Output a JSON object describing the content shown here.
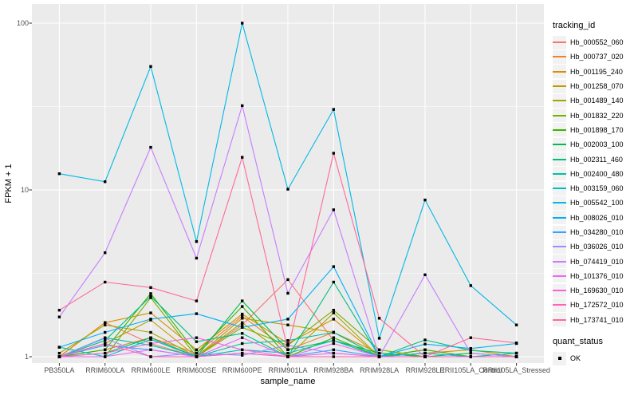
{
  "figure": {
    "panel_background": "#ebebeb",
    "grid_color": "#ffffff",
    "tick_color": "#333333",
    "tick_label_color": "#4d4d4d",
    "point_color": "#000000"
  },
  "axes": {
    "x_title": "sample_name",
    "y_title": "FPKM + 1"
  },
  "legend": {
    "color_title": "tracking_id",
    "shape_title": "quant_status",
    "shape_entries": [
      {
        "label": "OK",
        "marker": "filled-square"
      }
    ]
  },
  "chart_data": {
    "type": "line",
    "title": "",
    "xlabel": "sample_name",
    "ylabel": "FPKM + 1",
    "y_scale": "log10",
    "ylim": [
      0.92,
      130
    ],
    "y_ticks": [
      1,
      10,
      100
    ],
    "y_minor_ticks": [
      3.162,
      31.623
    ],
    "grid": "on",
    "legend_position": "right",
    "point_marker": "black-square",
    "categories": [
      "PB350LA",
      "RRIM600LA",
      "RRIM600LE",
      "RRIM600SE",
      "RRIM600PE",
      "RRIM901LA",
      "RRIM928BA",
      "RRIM928LA",
      "RRIM928LE",
      "RRII105LA_Control",
      "RRII105LA_Stressed"
    ],
    "series": [
      {
        "name": "Hb_000552_060",
        "color": "#F8766D",
        "values": [
          1.0,
          1.6,
          1.2,
          1.0,
          1.55,
          2.9,
          1.25,
          1.0,
          1.05,
          1.0,
          1.0
        ]
      },
      {
        "name": "Hb_000737_020",
        "color": "#EA8331",
        "values": [
          1.0,
          1.1,
          1.3,
          1.05,
          1.75,
          1.1,
          1.4,
          1.0,
          1.1,
          1.0,
          1.0
        ]
      },
      {
        "name": "Hb_001195_240",
        "color": "#D89000",
        "values": [
          1.0,
          1.6,
          1.83,
          1.1,
          1.8,
          1.2,
          1.68,
          1.0,
          1.05,
          1.1,
          1.0
        ]
      },
      {
        "name": "Hb_001258_070",
        "color": "#C09B00",
        "values": [
          1.0,
          1.2,
          1.66,
          1.0,
          1.7,
          1.55,
          1.4,
          1.05,
          1.0,
          1.0,
          1.05
        ]
      },
      {
        "name": "Hb_001489_140",
        "color": "#A3A500",
        "values": [
          1.05,
          1.55,
          1.4,
          1.0,
          1.6,
          1.0,
          1.83,
          1.0,
          1.0,
          1.0,
          1.0
        ]
      },
      {
        "name": "Hb_001832_220",
        "color": "#7CAE00",
        "values": [
          1.0,
          1.0,
          2.26,
          1.0,
          1.5,
          1.17,
          1.9,
          1.1,
          1.0,
          1.0,
          1.0
        ]
      },
      {
        "name": "Hb_001898_170",
        "color": "#39B600",
        "values": [
          1.0,
          1.1,
          2.39,
          1.05,
          2.0,
          1.0,
          1.3,
          1.0,
          1.1,
          1.0,
          1.0
        ]
      },
      {
        "name": "Hb_002003_100",
        "color": "#00BB4E",
        "values": [
          1.0,
          1.05,
          1.3,
          1.0,
          2.16,
          1.1,
          1.25,
          1.05,
          1.0,
          1.05,
          1.0
        ]
      },
      {
        "name": "Hb_002311_460",
        "color": "#00BF7D",
        "values": [
          1.0,
          1.25,
          2.3,
          1.23,
          1.38,
          1.0,
          2.8,
          1.0,
          1.26,
          1.09,
          1.05
        ]
      },
      {
        "name": "Hb_002400_480",
        "color": "#00C1A3",
        "values": [
          1.0,
          1.3,
          1.17,
          1.0,
          1.2,
          1.25,
          1.4,
          1.0,
          1.05,
          1.0,
          1.0
        ]
      },
      {
        "name": "Hb_003159_060",
        "color": "#00BFC4",
        "values": [
          1.14,
          1.0,
          1.27,
          1.0,
          1.1,
          1.05,
          1.25,
          1.0,
          1.0,
          1.0,
          1.05
        ]
      },
      {
        "name": "Hb_005542_100",
        "color": "#00B8E5",
        "values": [
          12.5,
          11.2,
          55.0,
          4.9,
          100.0,
          10.1,
          30.4,
          1.29,
          8.7,
          2.67,
          1.55
        ]
      },
      {
        "name": "Hb_008026_010",
        "color": "#00B0F6",
        "values": [
          1.14,
          1.4,
          1.68,
          1.81,
          1.5,
          1.68,
          3.47,
          1.0,
          1.19,
          1.12,
          1.2
        ]
      },
      {
        "name": "Hb_034280_010",
        "color": "#35A2FF",
        "values": [
          1.0,
          1.17,
          1.1,
          1.0,
          1.05,
          1.0,
          1.1,
          1.0,
          1.05,
          1.0,
          1.0
        ]
      },
      {
        "name": "Hb_036026_010",
        "color": "#9590FF",
        "values": [
          1.0,
          1.29,
          1.0,
          1.05,
          1.02,
          1.17,
          1.05,
          1.0,
          1.0,
          1.0,
          1.0
        ]
      },
      {
        "name": "Hb_074419_010",
        "color": "#C77CFF",
        "values": [
          1.73,
          4.2,
          18.0,
          3.9,
          32.0,
          2.4,
          7.6,
          1.0,
          3.1,
          1.05,
          1.0
        ]
      },
      {
        "name": "Hb_101376_010",
        "color": "#E76BF3",
        "values": [
          1.0,
          1.0,
          1.1,
          1.0,
          1.3,
          1.0,
          1.2,
          1.0,
          1.0,
          1.0,
          1.0
        ]
      },
      {
        "name": "Hb_169630_010",
        "color": "#FA62DB",
        "values": [
          1.0,
          1.05,
          1.2,
          1.3,
          1.1,
          1.0,
          1.05,
          1.0,
          1.0,
          1.0,
          1.0
        ]
      },
      {
        "name": "Hb_172572_010",
        "color": "#FF62BC",
        "values": [
          1.0,
          1.2,
          1.0,
          1.0,
          1.05,
          1.0,
          1.0,
          1.0,
          1.0,
          1.0,
          1.0
        ]
      },
      {
        "name": "Hb_173741_010",
        "color": "#FF6A98",
        "values": [
          1.9,
          2.8,
          2.6,
          2.16,
          15.7,
          1.1,
          16.6,
          1.7,
          1.0,
          1.3,
          1.21
        ]
      }
    ]
  }
}
